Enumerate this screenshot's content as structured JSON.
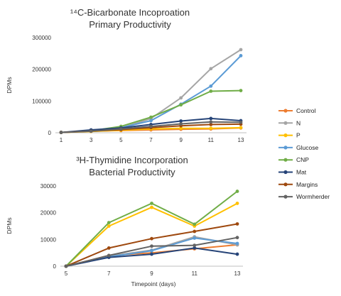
{
  "chart_data": [
    {
      "type": "line",
      "title": "¹⁴C-Bicarbonate Incoproation",
      "subtitle": "Primary Productivity",
      "xlabel": "",
      "ylabel": "DPMs",
      "x": [
        1,
        3,
        5,
        7,
        9,
        11,
        13
      ],
      "x_ticks": [
        "1",
        "3",
        "5",
        "7",
        "9",
        "11",
        "13"
      ],
      "y_ticks": [
        "0",
        "100000",
        "200000",
        "300000"
      ],
      "ylim": [
        0,
        300000
      ],
      "grid": false,
      "series": [
        {
          "name": "Control",
          "color": "#ED7D31",
          "values": [
            1000,
            5000,
            7000,
            9000,
            11000,
            12000,
            15000
          ]
        },
        {
          "name": "N",
          "color": "#A5A5A5",
          "values": [
            1000,
            6000,
            15000,
            45000,
            110000,
            202000,
            262000
          ]
        },
        {
          "name": "P",
          "color": "#FFC000",
          "values": [
            1000,
            4000,
            8000,
            12000,
            14000,
            14000,
            16000
          ]
        },
        {
          "name": "Glucose",
          "color": "#5B9BD5",
          "values": [
            1000,
            6000,
            16000,
            38000,
            90000,
            147000,
            243000
          ]
        },
        {
          "name": "CNP",
          "color": "#70AD47",
          "values": [
            1000,
            6000,
            20000,
            49000,
            88000,
            131000,
            133000
          ]
        },
        {
          "name": "Mat",
          "color": "#264478",
          "values": [
            1000,
            9000,
            15000,
            26000,
            37000,
            45000,
            38000
          ]
        },
        {
          "name": "Margins",
          "color": "#9E480E",
          "values": [
            1000,
            5000,
            10000,
            16000,
            22000,
            26000,
            27000
          ]
        },
        {
          "name": "Wormherder",
          "color": "#636363",
          "values": [
            1000,
            5000,
            12000,
            20000,
            28000,
            34000,
            33000
          ]
        }
      ]
    },
    {
      "type": "line",
      "title": "³H-Thymidine Incorporation",
      "subtitle": "Bacterial Productivity",
      "xlabel": "Timepoint (days)",
      "ylabel": "DPMs",
      "x": [
        5,
        7,
        9,
        11,
        13
      ],
      "x_ticks": [
        "5",
        "7",
        "9",
        "11",
        "13"
      ],
      "y_ticks": [
        "0",
        "10000",
        "20000",
        "30000"
      ],
      "ylim": [
        0,
        30000
      ],
      "grid": false,
      "series": [
        {
          "name": "Control",
          "color": "#ED7D31",
          "values": [
            0,
            4000,
            5000,
            6500,
            8000
          ]
        },
        {
          "name": "N",
          "color": "#A5A5A5",
          "values": [
            0,
            3800,
            6000,
            11000,
            8000
          ]
        },
        {
          "name": "P",
          "color": "#FFC000",
          "values": [
            0,
            15000,
            22000,
            15000,
            23500
          ]
        },
        {
          "name": "Glucose",
          "color": "#5B9BD5",
          "values": [
            0,
            3500,
            5800,
            10500,
            8500
          ]
        },
        {
          "name": "CNP",
          "color": "#70AD47",
          "values": [
            0,
            16300,
            23500,
            15700,
            28000
          ]
        },
        {
          "name": "Mat",
          "color": "#264478",
          "values": [
            0,
            3300,
            4500,
            6800,
            4500
          ]
        },
        {
          "name": "Margins",
          "color": "#9E480E",
          "values": [
            0,
            6800,
            10300,
            13000,
            15800
          ]
        },
        {
          "name": "Wormherder",
          "color": "#636363",
          "values": [
            0,
            4000,
            7500,
            7800,
            10700
          ]
        }
      ]
    }
  ],
  "legend": {
    "placement": "right",
    "items": [
      {
        "label": "Control",
        "color": "#ED7D31"
      },
      {
        "label": "N",
        "color": "#A5A5A5"
      },
      {
        "label": "P",
        "color": "#FFC000"
      },
      {
        "label": "Glucose",
        "color": "#5B9BD5"
      },
      {
        "label": "CNP",
        "color": "#70AD47"
      },
      {
        "label": "Mat",
        "color": "#264478"
      },
      {
        "label": "Margins",
        "color": "#9E480E"
      },
      {
        "label": "Wormherder",
        "color": "#636363"
      }
    ]
  }
}
